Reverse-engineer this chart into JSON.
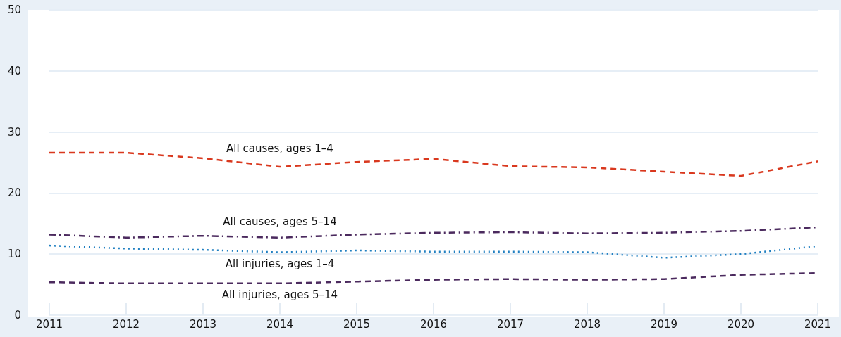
{
  "chart_data": {
    "type": "line",
    "x": [
      2011,
      2012,
      2013,
      2014,
      2015,
      2016,
      2017,
      2018,
      2019,
      2020,
      2021
    ],
    "xlim": [
      2011,
      2021
    ],
    "xticks": [
      2011,
      2012,
      2013,
      2014,
      2015,
      2016,
      2017,
      2018,
      2019,
      2020,
      2021
    ],
    "ylim": [
      0,
      50
    ],
    "yticks": [
      0,
      10,
      20,
      30,
      40,
      50
    ],
    "grid": "y",
    "legend": false,
    "marker": "none",
    "series": [
      {
        "name": "All causes, ages 1–4",
        "color": "#d9381e",
        "line_style": "dashed",
        "values": [
          26.6,
          26.6,
          25.7,
          24.3,
          25.1,
          25.6,
          24.4,
          24.2,
          23.5,
          22.8,
          25.2
        ]
      },
      {
        "name": "All causes, ages 5–14",
        "color": "#4b2a5e",
        "line_style": "dashdot",
        "values": [
          13.2,
          12.7,
          13.0,
          12.7,
          13.2,
          13.5,
          13.6,
          13.4,
          13.5,
          13.8,
          14.4
        ]
      },
      {
        "name": "All injuries, ages 1–4",
        "color": "#1f7fc1",
        "line_style": "dotted",
        "values": [
          11.4,
          10.9,
          10.7,
          10.3,
          10.6,
          10.4,
          10.4,
          10.3,
          9.4,
          10.0,
          11.3
        ]
      },
      {
        "name": "All injuries, ages 5–14",
        "color": "#4b2a5e",
        "line_style": "dashed",
        "values": [
          5.4,
          5.2,
          5.2,
          5.2,
          5.5,
          5.8,
          5.9,
          5.8,
          5.9,
          6.6,
          6.9
        ]
      }
    ]
  }
}
